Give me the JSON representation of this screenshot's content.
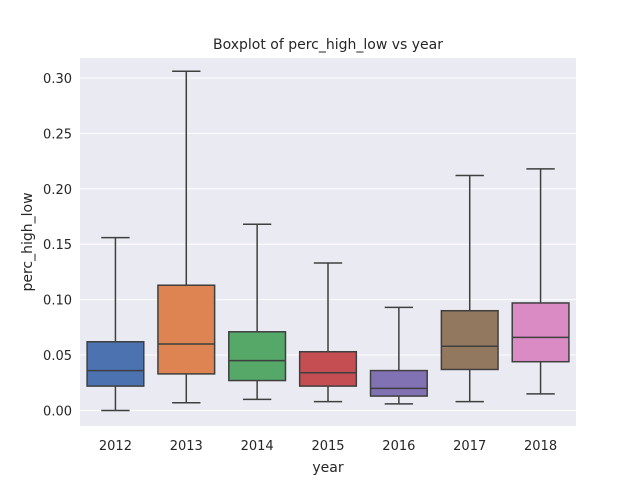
{
  "chart_data": {
    "type": "boxplot",
    "title": "Boxplot of perc_high_low vs year",
    "xlabel": "year",
    "ylabel": "perc_high_low",
    "ylim": [
      -0.014,
      0.318
    ],
    "yticks": [
      0.0,
      0.05,
      0.1,
      0.15,
      0.2,
      0.25,
      0.3
    ],
    "ytick_labels": [
      "0.00",
      "0.05",
      "0.10",
      "0.15",
      "0.20",
      "0.25",
      "0.30"
    ],
    "grid": true,
    "categories": [
      "2012",
      "2013",
      "2014",
      "2015",
      "2016",
      "2017",
      "2018"
    ],
    "boxes": [
      {
        "category": "2012",
        "whisker_low": 0.0,
        "q1": 0.022,
        "median": 0.036,
        "q3": 0.062,
        "whisker_high": 0.156,
        "color": "#4c72b0"
      },
      {
        "category": "2013",
        "whisker_low": 0.007,
        "q1": 0.033,
        "median": 0.06,
        "q3": 0.113,
        "whisker_high": 0.306,
        "color": "#dd8452"
      },
      {
        "category": "2014",
        "whisker_low": 0.01,
        "q1": 0.027,
        "median": 0.045,
        "q3": 0.071,
        "whisker_high": 0.168,
        "color": "#55a868"
      },
      {
        "category": "2015",
        "whisker_low": 0.008,
        "q1": 0.022,
        "median": 0.034,
        "q3": 0.053,
        "whisker_high": 0.133,
        "color": "#c44e52"
      },
      {
        "category": "2016",
        "whisker_low": 0.006,
        "q1": 0.013,
        "median": 0.02,
        "q3": 0.036,
        "whisker_high": 0.093,
        "color": "#8172b3"
      },
      {
        "category": "2017",
        "whisker_low": 0.008,
        "q1": 0.037,
        "median": 0.058,
        "q3": 0.09,
        "whisker_high": 0.212,
        "color": "#937860"
      },
      {
        "category": "2018",
        "whisker_low": 0.015,
        "q1": 0.044,
        "median": 0.066,
        "q3": 0.097,
        "whisker_high": 0.218,
        "color": "#da8bc3"
      }
    ],
    "colors": {
      "plot_background": "#eaeaf2",
      "grid": "#ffffff",
      "lines": "#3f3f3f"
    }
  }
}
